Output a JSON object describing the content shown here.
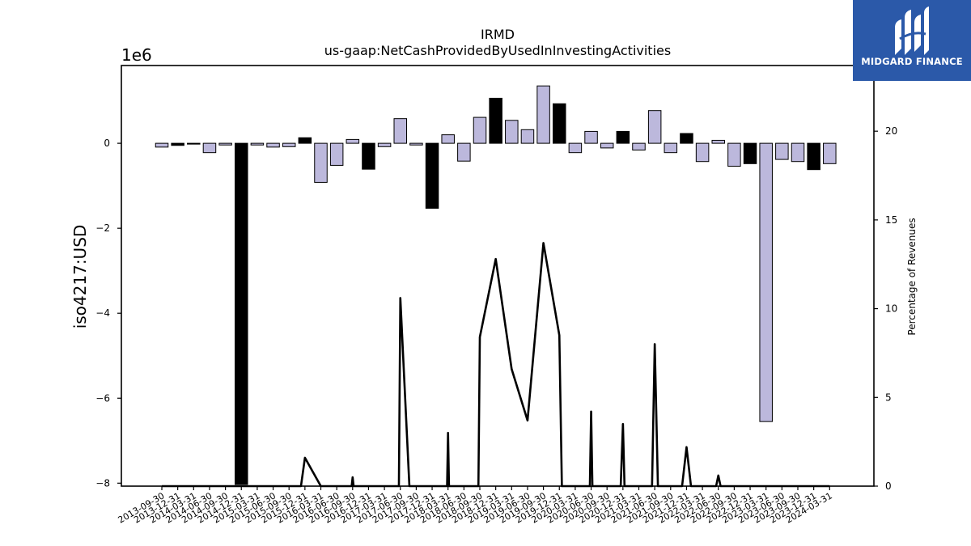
{
  "chart_data": {
    "type": "bar",
    "title": "IRMD",
    "subtitle": "us-gaap:NetCashProvidedByUsedInInvestingActivities",
    "ylabel": "iso4217:USD",
    "y_offset_label": "1e6",
    "y2label": "Percentage of Revenues",
    "ylim": [
      -8.07,
      1.83
    ],
    "y2lim": [
      0,
      23.7
    ],
    "yticks": [
      "0",
      "−2",
      "−4",
      "−6",
      "−8"
    ],
    "y2ticks": [
      "0",
      "5",
      "10",
      "15",
      "20"
    ],
    "categories": [
      "2013-09-30",
      "2013-12-31",
      "2014-03-31",
      "2014-06-30",
      "2014-09-30",
      "2014-12-31",
      "2015-03-31",
      "2015-06-30",
      "2015-09-30",
      "2015-12-31",
      "2016-03-31",
      "2016-06-30",
      "2016-09-30",
      "2016-12-31",
      "2017-03-31",
      "2017-06-30",
      "2017-09-30",
      "2017-12-31",
      "2018-03-31",
      "2018-06-30",
      "2018-09-30",
      "2018-12-31",
      "2019-03-31",
      "2019-06-30",
      "2019-09-30",
      "2019-12-31",
      "2020-03-31",
      "2020-06-30",
      "2020-09-30",
      "2020-12-31",
      "2021-03-31",
      "2021-06-30",
      "2021-09-30",
      "2021-12-31",
      "2022-03-31",
      "2022-06-30",
      "2022-09-30",
      "2022-12-31",
      "2023-03-31",
      "2023-06-30",
      "2023-09-30",
      "2023-12-31",
      "2024-03-31"
    ],
    "series": [
      {
        "values": [
          -0.09,
          -0.05,
          -0.02,
          -0.22,
          -0.04,
          -8.03,
          -0.04,
          -0.09,
          -0.08,
          0.13,
          -0.92,
          -0.52,
          0.09,
          -0.61,
          -0.08,
          0.58,
          -0.04,
          -1.53,
          0.2,
          -0.42,
          0.61,
          1.06,
          0.54,
          0.32,
          1.35,
          0.93,
          -0.22,
          0.28,
          -0.11,
          0.28,
          -0.16,
          0.77,
          -0.22,
          0.23,
          -0.43,
          0.07,
          -0.54,
          -0.48,
          -6.55,
          -0.38,
          -0.43,
          -0.62,
          -0.48
        ],
        "highlight": [
          false,
          true,
          true,
          false,
          false,
          true,
          false,
          false,
          false,
          true,
          false,
          false,
          false,
          true,
          false,
          false,
          false,
          true,
          false,
          false,
          false,
          true,
          false,
          false,
          false,
          true,
          false,
          false,
          false,
          true,
          false,
          false,
          false,
          true,
          false,
          false,
          false,
          true,
          false,
          false,
          false,
          true,
          false
        ]
      },
      {
        "values": [
          0,
          0,
          0,
          0,
          0,
          0,
          0,
          0,
          0,
          1.6,
          0,
          0,
          0.5,
          0,
          0,
          10.6,
          0,
          0,
          3.0,
          0,
          8.4,
          12.8,
          6.6,
          3.7,
          13.7,
          8.5,
          0,
          4.2,
          0,
          3.5,
          0,
          8.0,
          0,
          2.2,
          0,
          0.6,
          0,
          0,
          0,
          0,
          0,
          0,
          0
        ],
        "cross_zero": [
          null,
          null,
          null,
          null,
          null,
          null,
          null,
          null,
          0.75,
          null,
          null,
          0.94,
          0.06,
          null,
          0.91,
          0.57,
          null,
          0.94,
          0.06,
          0.91,
          null,
          null,
          null,
          null,
          null,
          0.16,
          0.92,
          0.08,
          0.86,
          0.1,
          0.83,
          0.2,
          0.72,
          0.28,
          0.86,
          0.14,
          null,
          null,
          null,
          null,
          null,
          null,
          null
        ]
      }
    ],
    "colors": {
      "bar_fill": "#bcb8dc",
      "bar_highlight": "#000000",
      "bar_edge": "#000000",
      "line": "#000000"
    },
    "grid": false,
    "legend": "none"
  },
  "brand": {
    "name": "MIDGARD FINANCE",
    "background": "#2b59a9",
    "icon": "midgard-logo-icon"
  }
}
